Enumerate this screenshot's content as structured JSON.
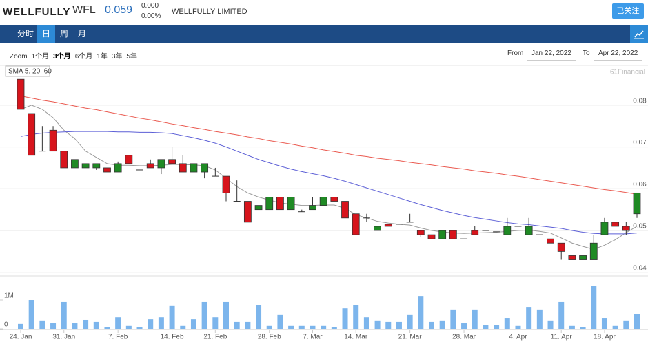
{
  "header": {
    "logo": "WELLFULLY",
    "ticker": "WFL",
    "price": "0.059",
    "change": "0.000",
    "change_pct": "0.00%",
    "company": "WELLFULLY LIMITED",
    "follow_button": "已关注"
  },
  "nav": {
    "tabs": [
      "分时",
      "日",
      "周",
      "月"
    ]
  },
  "toolbar": {
    "zoom_label": "Zoom",
    "zoom_options": [
      "1个月",
      "3个月",
      "6个月",
      "1年",
      "3年",
      "5年"
    ],
    "from_label": "From",
    "from_date": "Jan 22, 2022",
    "to_label": "To",
    "to_date": "Apr 22, 2022"
  },
  "chart_data": {
    "type": "candlestick",
    "watermark": "61Financial",
    "indicator_label": "SMA 5, 20, 60",
    "categories": [
      "24. Jan",
      null,
      null,
      null,
      "31. Jan",
      null,
      null,
      null,
      null,
      "7. Feb",
      null,
      null,
      null,
      null,
      "14. Feb",
      null,
      null,
      null,
      "21. Feb",
      null,
      null,
      null,
      null,
      "28. Feb",
      null,
      null,
      null,
      "7. Mar",
      null,
      null,
      null,
      "14. Mar",
      null,
      null,
      null,
      null,
      "21. Mar",
      null,
      null,
      null,
      null,
      "28. Mar",
      null,
      null,
      null,
      null,
      "4. Apr",
      null,
      null,
      null,
      "11. Apr",
      null,
      null,
      null,
      "18. Apr",
      null,
      null,
      null
    ],
    "open": [
      0.0862,
      0.078,
      0.069,
      0.074,
      0.069,
      0.065,
      0.065,
      0.065,
      0.065,
      0.064,
      0.068,
      0.0645,
      0.066,
      0.065,
      0.067,
      0.066,
      0.064,
      0.064,
      0.063,
      0.063,
      0.057,
      0.057,
      0.055,
      0.055,
      0.058,
      0.055,
      0.0545,
      0.055,
      0.056,
      0.058,
      0.057,
      0.054,
      0.053,
      0.05,
      0.0515,
      0.0515,
      0.052,
      0.05,
      0.049,
      0.048,
      0.05,
      0.048,
      0.05,
      0.05,
      0.0497,
      0.049,
      0.051,
      0.049,
      0.049,
      0.048,
      0.047,
      0.044,
      0.043,
      0.043,
      0.049,
      0.052,
      0.051,
      0.054
    ],
    "high": [
      0.0862,
      0.078,
      0.075,
      0.075,
      0.069,
      0.067,
      0.066,
      0.066,
      0.065,
      0.0665,
      0.068,
      0.0645,
      0.067,
      0.067,
      0.07,
      0.068,
      0.066,
      0.066,
      0.065,
      0.063,
      0.062,
      0.057,
      0.056,
      0.058,
      0.058,
      0.058,
      0.055,
      0.058,
      0.058,
      0.058,
      0.057,
      0.054,
      0.054,
      0.051,
      0.0515,
      0.0515,
      0.054,
      0.05,
      0.049,
      0.05,
      0.05,
      0.048,
      0.051,
      0.05,
      0.0497,
      0.053,
      0.051,
      0.053,
      0.049,
      0.048,
      0.047,
      0.044,
      0.044,
      0.049,
      0.053,
      0.052,
      0.052,
      0.059
    ],
    "low": [
      0.079,
      0.068,
      0.069,
      0.069,
      0.065,
      0.065,
      0.065,
      0.0645,
      0.064,
      0.064,
      0.066,
      0.0645,
      0.065,
      0.0635,
      0.066,
      0.064,
      0.064,
      0.0625,
      0.063,
      0.057,
      0.057,
      0.052,
      0.055,
      0.055,
      0.055,
      0.055,
      0.0545,
      0.055,
      0.056,
      0.057,
      0.053,
      0.049,
      0.052,
      0.05,
      0.051,
      0.0515,
      0.052,
      0.0485,
      0.048,
      0.048,
      0.048,
      0.048,
      0.049,
      0.05,
      0.0497,
      0.049,
      0.051,
      0.049,
      0.049,
      0.047,
      0.043,
      0.043,
      0.043,
      0.043,
      0.049,
      0.051,
      0.049,
      0.053
    ],
    "close": [
      0.079,
      0.068,
      0.069,
      0.069,
      0.065,
      0.067,
      0.066,
      0.066,
      0.064,
      0.066,
      0.066,
      0.0645,
      0.065,
      0.067,
      0.066,
      0.064,
      0.066,
      0.066,
      0.063,
      0.059,
      0.057,
      0.052,
      0.056,
      0.058,
      0.055,
      0.058,
      0.0545,
      0.056,
      0.058,
      0.057,
      0.053,
      0.049,
      0.053,
      0.051,
      0.051,
      0.0515,
      0.052,
      0.049,
      0.048,
      0.05,
      0.048,
      0.048,
      0.049,
      0.05,
      0.0497,
      0.051,
      0.051,
      0.051,
      0.049,
      0.047,
      0.045,
      0.043,
      0.044,
      0.047,
      0.052,
      0.051,
      0.05,
      0.059
    ],
    "up_color": "#1f8a24",
    "down_color": "#d7141c",
    "ylim": [
      0.0393,
      0.0892
    ],
    "yticks": [
      0.04,
      0.05,
      0.06,
      0.07,
      0.08
    ],
    "grid": true,
    "sma": [
      {
        "color": "#9a9a9a",
        "values": [
          0.079,
          0.08,
          0.079,
          0.077,
          0.074,
          0.072,
          0.069,
          0.0675,
          0.066,
          0.0656,
          0.0656,
          0.0655,
          0.0655,
          0.0656,
          0.0658,
          0.0658,
          0.0657,
          0.0655,
          0.0645,
          0.0625,
          0.0605,
          0.059,
          0.058,
          0.0573,
          0.0566,
          0.0563,
          0.056,
          0.056,
          0.0561,
          0.0561,
          0.0553,
          0.0538,
          0.053,
          0.0522,
          0.0518,
          0.0515,
          0.0513,
          0.0506,
          0.05,
          0.0497,
          0.0494,
          0.0493,
          0.0494,
          0.0495,
          0.0496,
          0.0498,
          0.05,
          0.0501,
          0.0498,
          0.0494,
          0.0482,
          0.047,
          0.0462,
          0.0455,
          0.0465,
          0.0478,
          0.0495,
          0.051
        ]
      },
      {
        "color": "#5c5fd6",
        "values": [
          0.0725,
          0.073,
          0.0733,
          0.0735,
          0.0736,
          0.0737,
          0.0737,
          0.0737,
          0.0737,
          0.0736,
          0.0736,
          0.0735,
          0.0735,
          0.0734,
          0.0732,
          0.0727,
          0.0722,
          0.0716,
          0.0709,
          0.07,
          0.069,
          0.068,
          0.067,
          0.0662,
          0.0654,
          0.0647,
          0.0641,
          0.0636,
          0.0631,
          0.0625,
          0.0618,
          0.061,
          0.0602,
          0.0594,
          0.0586,
          0.0578,
          0.057,
          0.0562,
          0.0555,
          0.0548,
          0.0542,
          0.0536,
          0.0531,
          0.0527,
          0.0523,
          0.0519,
          0.0516,
          0.0514,
          0.0511,
          0.0508,
          0.0505,
          0.05,
          0.0496,
          0.0493,
          0.0492,
          0.0492,
          0.0492,
          0.0494
        ]
      },
      {
        "color": "#ea5a50",
        "values": [
          0.0822,
          0.0817,
          0.0812,
          0.0808,
          0.0803,
          0.0798,
          0.0793,
          0.0789,
          0.0784,
          0.0779,
          0.0774,
          0.0769,
          0.0765,
          0.076,
          0.0755,
          0.0751,
          0.0746,
          0.0742,
          0.0737,
          0.0733,
          0.0729,
          0.0724,
          0.072,
          0.0715,
          0.0711,
          0.0707,
          0.0702,
          0.0698,
          0.0693,
          0.0689,
          0.0685,
          0.068,
          0.0677,
          0.0673,
          0.067,
          0.0667,
          0.0663,
          0.066,
          0.0657,
          0.0653,
          0.065,
          0.0647,
          0.0643,
          0.064,
          0.0637,
          0.0633,
          0.063,
          0.0626,
          0.0622,
          0.0618,
          0.0614,
          0.061,
          0.0606,
          0.0602,
          0.0598,
          0.0595,
          0.0591,
          0.0587
        ]
      }
    ],
    "volume": {
      "color": "#7cb5ec",
      "ylim": [
        0,
        1810000
      ],
      "yticks": [
        0,
        {
          "value": 1000000,
          "label": "1M"
        }
      ],
      "values": [
        170000,
        1000000,
        290000,
        190000,
        930000,
        190000,
        310000,
        240000,
        50000,
        400000,
        100000,
        50000,
        330000,
        400000,
        790000,
        100000,
        330000,
        930000,
        400000,
        930000,
        240000,
        240000,
        810000,
        100000,
        480000,
        100000,
        100000,
        100000,
        100000,
        50000,
        710000,
        810000,
        400000,
        290000,
        240000,
        240000,
        480000,
        1140000,
        240000,
        290000,
        670000,
        190000,
        670000,
        140000,
        140000,
        380000,
        100000,
        760000,
        670000,
        290000,
        930000,
        100000,
        50000,
        1500000,
        380000,
        100000,
        290000,
        520000
      ]
    }
  }
}
